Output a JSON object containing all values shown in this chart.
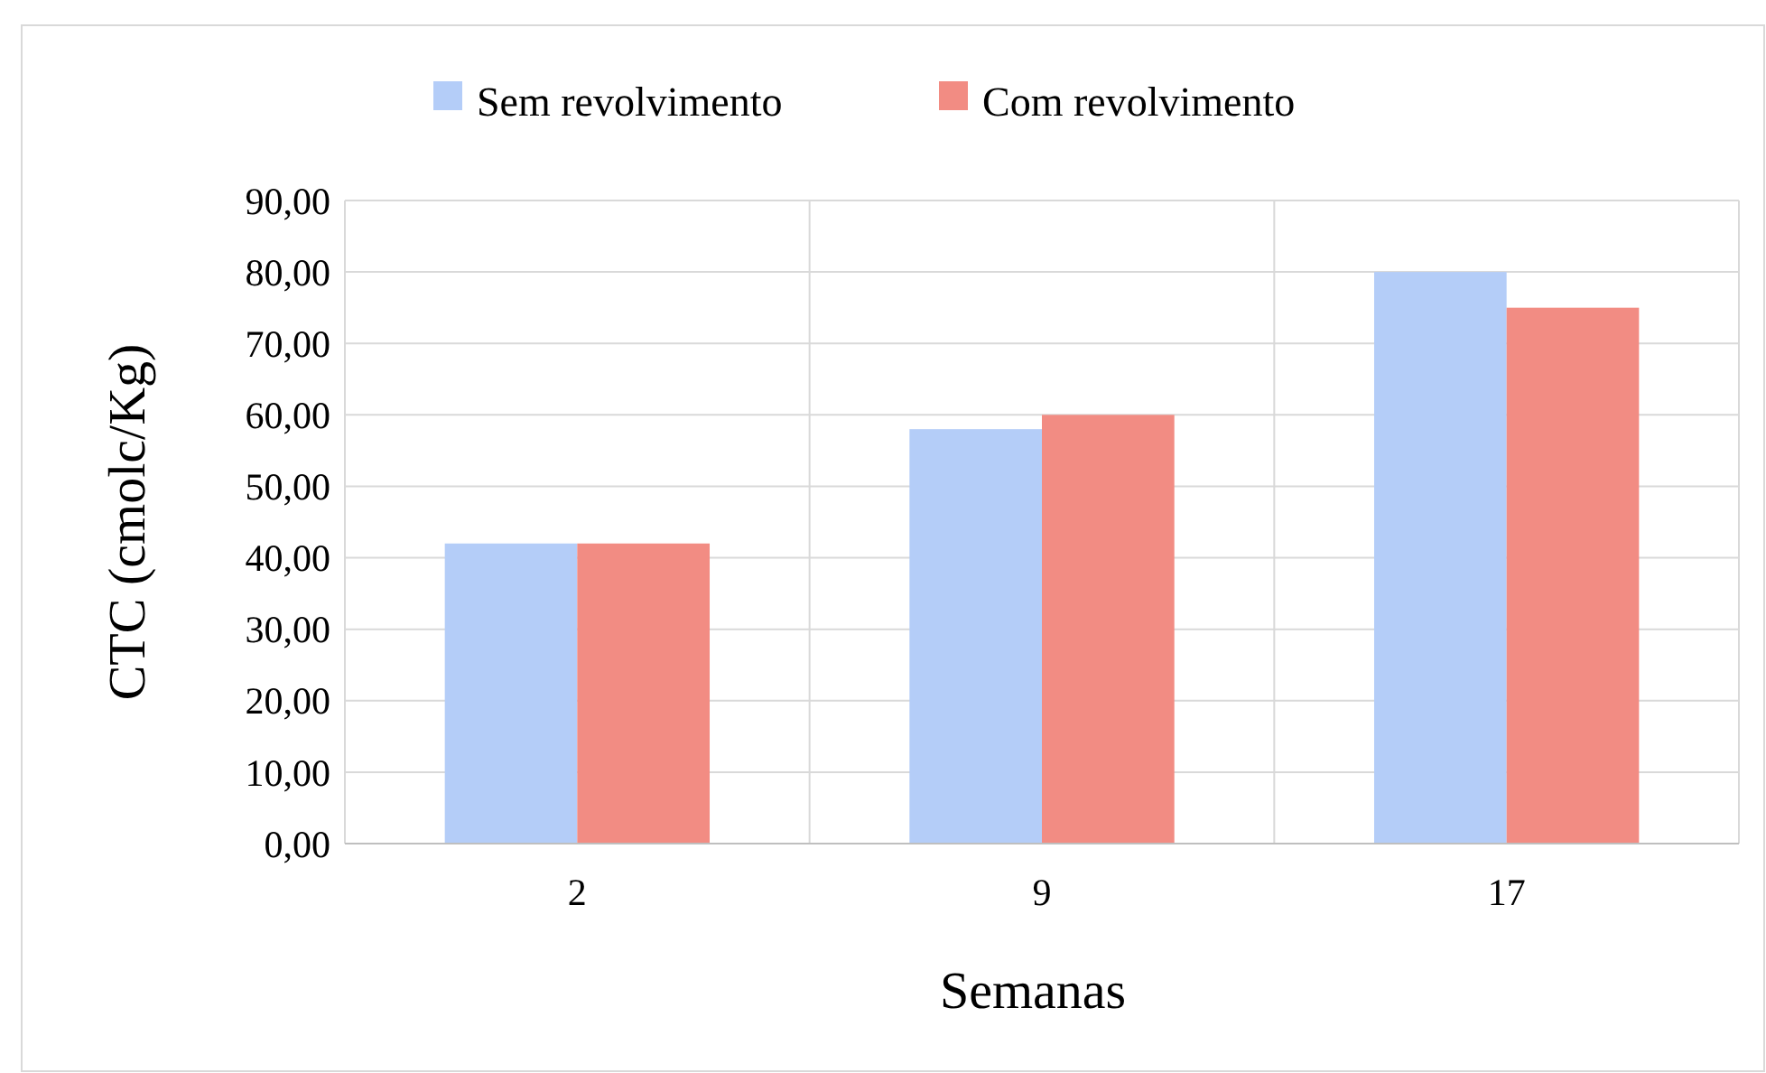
{
  "chart_data": {
    "type": "bar",
    "xlabel": "Semanas",
    "ylabel": "CTC (cmolc/Kg)",
    "categories": [
      "2",
      "9",
      "17"
    ],
    "series": [
      {
        "name": "Sem revolvimento",
        "color": "#b4cdf8",
        "values": [
          42,
          58,
          80
        ]
      },
      {
        "name": "Com revolvimento",
        "color": "#f28c83",
        "values": [
          42,
          60,
          75
        ]
      }
    ],
    "ylim": [
      0,
      90
    ],
    "yticks": [
      {
        "value": 0,
        "label": "0,00"
      },
      {
        "value": 10,
        "label": "10,00"
      },
      {
        "value": 20,
        "label": "20,00"
      },
      {
        "value": 30,
        "label": "30,00"
      },
      {
        "value": 40,
        "label": "40,00"
      },
      {
        "value": 50,
        "label": "50,00"
      },
      {
        "value": 60,
        "label": "60,00"
      },
      {
        "value": 70,
        "label": "70,00"
      },
      {
        "value": 80,
        "label": "80,00"
      },
      {
        "value": 90,
        "label": "90,00"
      }
    ],
    "grid": true,
    "legend": "top"
  }
}
